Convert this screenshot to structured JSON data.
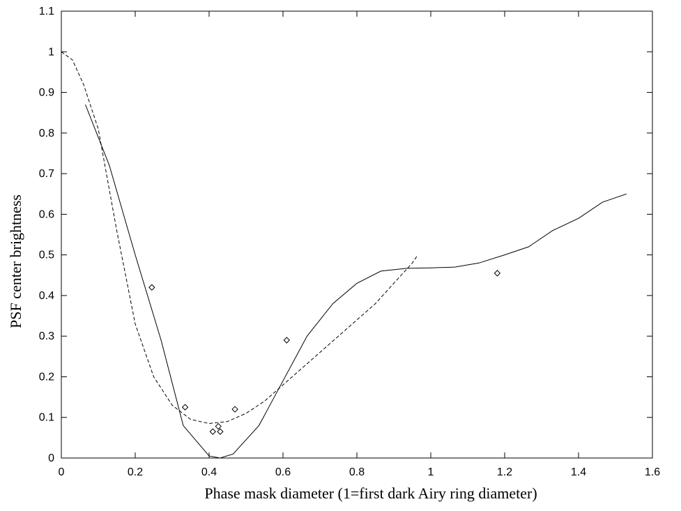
{
  "chart_data": {
    "type": "line",
    "title": "",
    "xlabel": "Phase mask diameter (1=first dark Airy ring diameter)",
    "ylabel": "PSF center brightness",
    "xlim": [
      0,
      1.6
    ],
    "ylim": [
      0,
      1.1
    ],
    "xticks": [
      0,
      0.2,
      0.4,
      0.6,
      0.8,
      1,
      1.2,
      1.4,
      1.6
    ],
    "xtick_labels": [
      "0",
      "0.2",
      "0.4",
      "0.6",
      "0.8",
      "1",
      "1.2",
      "1.4",
      "1.6"
    ],
    "yticks": [
      0,
      0.1,
      0.2,
      0.3,
      0.4,
      0.5,
      0.6,
      0.7,
      0.8,
      0.9,
      1,
      1.1
    ],
    "ytick_labels": [
      "0",
      "0.1",
      "0.2",
      "0.3",
      "0.4",
      "0.5",
      "0.6",
      "0.7",
      "0.8",
      "0.9",
      "1",
      "1.1"
    ],
    "grid": false,
    "legend": "none",
    "series": [
      {
        "style": "solid",
        "color": "#000000",
        "x": [
          0.065,
          0.13,
          0.2,
          0.27,
          0.33,
          0.4,
          0.43,
          0.465,
          0.535,
          0.6,
          0.665,
          0.735,
          0.8,
          0.865,
          0.935,
          1.0,
          1.065,
          1.13,
          1.2,
          1.265,
          1.33,
          1.4,
          1.465,
          1.53
        ],
        "y": [
          0.87,
          0.72,
          0.5,
          0.29,
          0.08,
          0.005,
          0.0,
          0.01,
          0.08,
          0.19,
          0.3,
          0.38,
          0.43,
          0.46,
          0.467,
          0.468,
          0.47,
          0.48,
          0.5,
          0.52,
          0.56,
          0.59,
          0.63,
          0.65
        ]
      },
      {
        "style": "dashed",
        "color": "#000000",
        "x": [
          0.0,
          0.03,
          0.06,
          0.1,
          0.15,
          0.2,
          0.25,
          0.3,
          0.35,
          0.4,
          0.45,
          0.5,
          0.55,
          0.6,
          0.65,
          0.7,
          0.75,
          0.8,
          0.85,
          0.9,
          0.95,
          0.965
        ],
        "y": [
          1.0,
          0.98,
          0.92,
          0.81,
          0.56,
          0.33,
          0.2,
          0.13,
          0.095,
          0.085,
          0.09,
          0.11,
          0.14,
          0.18,
          0.22,
          0.26,
          0.3,
          0.34,
          0.38,
          0.43,
          0.48,
          0.5
        ]
      },
      {
        "style": "diamond-markers",
        "color": "#000000",
        "x": [
          0.245,
          0.335,
          0.41,
          0.425,
          0.43,
          0.47,
          0.61,
          1.18
        ],
        "y": [
          0.42,
          0.125,
          0.065,
          0.078,
          0.065,
          0.12,
          0.29,
          0.455
        ]
      }
    ]
  }
}
